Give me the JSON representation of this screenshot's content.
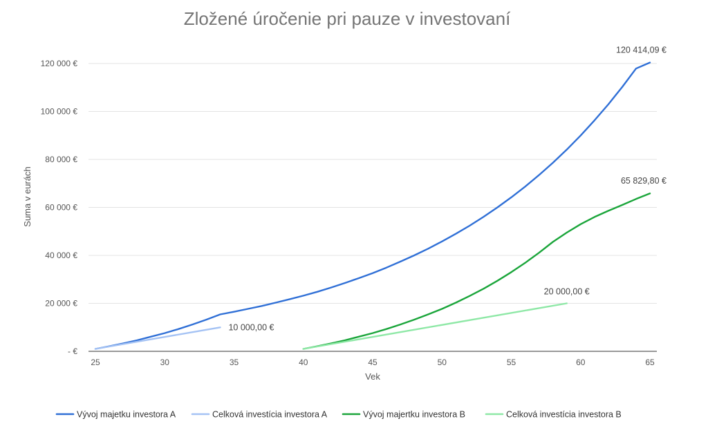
{
  "chart_data": {
    "type": "line",
    "title": "Zložené úročenie pri pauze v investovaní",
    "xlabel": "Vek",
    "ylabel": "Suma v eurách",
    "xlim": [
      25,
      65
    ],
    "ylim": [
      0,
      120000
    ],
    "x_ticks": [
      "25",
      "30",
      "35",
      "40",
      "45",
      "50",
      "55",
      "60",
      "65"
    ],
    "y_ticks": [
      "- €",
      "20 000 €",
      "40 000 €",
      "60 000 €",
      "80 000 €",
      "100 000 €",
      "120 000 €"
    ],
    "grid": true,
    "legend_position": "bottom",
    "series": [
      {
        "name": "Vývoj majetku investora A",
        "color": "#2f6fd6",
        "x": [
          25,
          26,
          27,
          28,
          29,
          30,
          31,
          32,
          33,
          34,
          35,
          36,
          37,
          38,
          39,
          40,
          41,
          42,
          43,
          44,
          45,
          46,
          47,
          48,
          49,
          50,
          51,
          52,
          53,
          54,
          55,
          56,
          57,
          58,
          59,
          60,
          61,
          62,
          63,
          64,
          65
        ],
        "y": [
          1000,
          2100,
          3300,
          4600,
          6100,
          7600,
          9300,
          11200,
          13200,
          15400,
          16500,
          17700,
          18900,
          20300,
          21700,
          23200,
          24800,
          26600,
          28500,
          30500,
          32600,
          34900,
          37400,
          40000,
          42800,
          45800,
          49000,
          52400,
          56100,
          60000,
          64200,
          68700,
          73500,
          78600,
          84100,
          90000,
          96300,
          103000,
          110200,
          117900,
          120414.09
        ]
      },
      {
        "name": "Celková investícia investora A",
        "color": "#a4c2f4",
        "x": [
          25,
          34
        ],
        "y": [
          1000,
          10000
        ]
      },
      {
        "name": "Vývoj majertku investora B",
        "color": "#1aa53a",
        "x": [
          40,
          41,
          42,
          43,
          44,
          45,
          46,
          47,
          48,
          49,
          50,
          51,
          52,
          53,
          54,
          55,
          56,
          57,
          58,
          59,
          60,
          61,
          62,
          63,
          64,
          65
        ],
        "y": [
          1000,
          2100,
          3300,
          4600,
          6100,
          7600,
          9300,
          11200,
          13200,
          15400,
          17700,
          20300,
          23100,
          26100,
          29400,
          33000,
          36900,
          41100,
          45600,
          49500,
          53000,
          56000,
          58600,
          61000,
          63500,
          65829.8
        ]
      },
      {
        "name": "Celková investícia investora B",
        "color": "#8ee8a6",
        "x": [
          40,
          59
        ],
        "y": [
          1000,
          20000
        ]
      }
    ],
    "data_labels": [
      {
        "text": "120 414,09 €",
        "x": 65,
        "y": 120414.09
      },
      {
        "text": "10 000,00 €",
        "x": 34,
        "y": 10000
      },
      {
        "text": "65 829,80 €",
        "x": 65,
        "y": 65829.8
      },
      {
        "text": "20 000,00 €",
        "x": 59,
        "y": 20000
      }
    ]
  }
}
